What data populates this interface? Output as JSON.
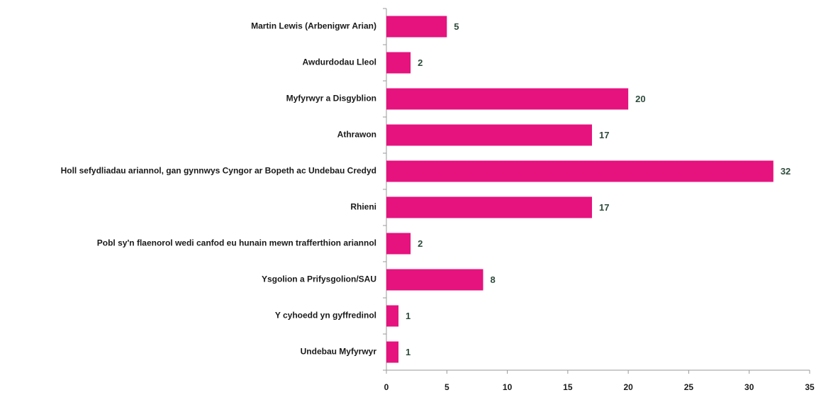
{
  "chart_data": {
    "type": "bar",
    "orientation": "horizontal",
    "categories": [
      "Martin Lewis (Arbenigwr Arian)",
      "Awdurdodau Lleol",
      "Myfyrwyr a Disgyblion",
      "Athrawon",
      "Holl sefydliadau ariannol, gan gynnwys Cyngor ar Bopeth ac Undebau Credyd",
      "Rhieni",
      "Pobl sy'n flaenorol wedi canfod eu hunain mewn trafferthion ariannol",
      "Ysgolion a Prifysgolion/SAU",
      "Y cyhoedd yn gyffredinol",
      "Undebau Myfyrwyr"
    ],
    "values": [
      5,
      2,
      20,
      17,
      32,
      17,
      2,
      8,
      1,
      1
    ],
    "color": "#e6127e",
    "xlim": [
      0,
      35
    ],
    "xticks": [
      0,
      5,
      10,
      15,
      20,
      25,
      30,
      35
    ],
    "grid": false
  }
}
